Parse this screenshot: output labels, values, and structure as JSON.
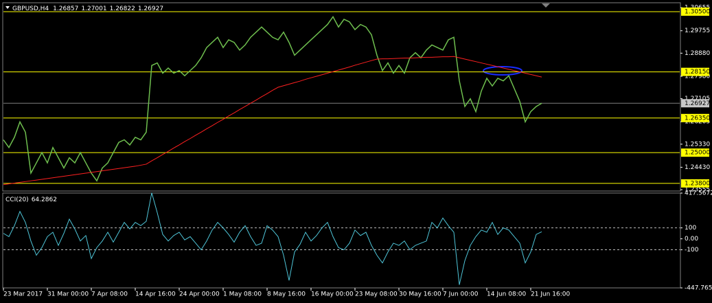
{
  "chart_data": [
    {
      "type": "line",
      "title": "GBPUSD,H4",
      "header_values": [
        1.26857,
        1.27001,
        1.26822,
        1.26927
      ],
      "categories": [
        "23 Mar 2017",
        null,
        null,
        null,
        null,
        null,
        null,
        null,
        "31 Mar 00:00",
        null,
        null,
        null,
        null,
        null,
        null,
        null,
        "7 Apr 08:00",
        null,
        null,
        null,
        null,
        null,
        null,
        null,
        "14 Apr 16:00",
        null,
        null,
        null,
        null,
        null,
        null,
        null,
        "24 Apr 00:00",
        null,
        null,
        null,
        null,
        null,
        null,
        null,
        "1 May 08:00",
        null,
        null,
        null,
        null,
        null,
        null,
        null,
        "8 May 16:00",
        null,
        null,
        null,
        null,
        null,
        null,
        null,
        "16 May 00:00",
        null,
        null,
        null,
        null,
        null,
        null,
        null,
        "23 May 08:00",
        null,
        null,
        null,
        null,
        null,
        null,
        null,
        "30 May 16:00",
        null,
        null,
        null,
        null,
        null,
        null,
        null,
        "7 Jun 00:00",
        null,
        null,
        null,
        null,
        null,
        null,
        null,
        "14 Jun 08:00",
        null,
        null,
        null,
        null,
        null,
        null,
        null,
        "21 Jun 16:00",
        null,
        null
      ],
      "series": [
        {
          "name": "GBPUSD",
          "color": "#6fbf4f",
          "values": [
            1.255,
            1.252,
            1.256,
            1.262,
            1.258,
            1.242,
            1.246,
            1.25,
            1.246,
            1.252,
            1.248,
            1.244,
            1.248,
            1.246,
            1.25,
            1.246,
            1.242,
            1.239,
            1.244,
            1.246,
            1.25,
            1.254,
            1.255,
            1.253,
            1.256,
            1.255,
            1.258,
            1.284,
            1.285,
            1.281,
            1.283,
            1.281,
            1.282,
            1.28,
            1.282,
            1.284,
            1.287,
            1.291,
            1.293,
            1.295,
            1.291,
            1.294,
            1.293,
            1.29,
            1.292,
            1.295,
            1.297,
            1.299,
            1.297,
            1.295,
            1.294,
            1.297,
            1.293,
            1.288,
            1.29,
            1.292,
            1.294,
            1.296,
            1.298,
            1.3,
            1.303,
            1.299,
            1.302,
            1.301,
            1.298,
            1.3,
            1.299,
            1.296,
            1.288,
            1.282,
            1.285,
            1.281,
            1.284,
            1.281,
            1.287,
            1.289,
            1.287,
            1.29,
            1.292,
            1.291,
            1.29,
            1.294,
            1.295,
            1.278,
            1.268,
            1.271,
            1.266,
            1.274,
            1.279,
            1.276,
            1.279,
            1.278,
            1.28,
            1.275,
            1.27,
            1.262,
            1.266,
            1.268,
            1.26927
          ]
        },
        {
          "name": "MA",
          "color": "#ff2020",
          "values": [
            1.2375,
            1.2378,
            1.2381,
            1.2384,
            1.2387,
            1.239,
            1.2393,
            1.2396,
            1.2399,
            1.2402,
            1.2405,
            1.2408,
            1.2411,
            1.2414,
            1.2417,
            1.242,
            1.2423,
            1.2426,
            1.2429,
            1.2432,
            1.2435,
            1.2438,
            1.2441,
            1.2444,
            1.2447,
            1.2451,
            1.2455,
            1.2468,
            1.248,
            1.2493,
            1.2505,
            1.2518,
            1.253,
            1.2543,
            1.2555,
            1.2568,
            1.258,
            1.2593,
            1.2605,
            1.2618,
            1.263,
            1.2643,
            1.2655,
            1.2668,
            1.268,
            1.2693,
            1.2705,
            1.2718,
            1.273,
            1.2743,
            1.2755,
            1.2761,
            1.2767,
            1.2773,
            1.2779,
            1.2786,
            1.2792,
            1.2798,
            1.2804,
            1.281,
            1.2816,
            1.2822,
            1.2828,
            1.2834,
            1.2841,
            1.2847,
            1.2853,
            1.2859,
            1.2865,
            1.2866,
            1.2866,
            1.2867,
            1.2868,
            1.2869,
            1.2869,
            1.287,
            1.2871,
            1.2872,
            1.2872,
            1.2873,
            1.2874,
            1.2874,
            1.2875,
            1.287,
            1.2865,
            1.286,
            1.2855,
            1.285,
            1.2845,
            1.284,
            1.2835,
            1.283,
            1.2825,
            1.282,
            1.2815,
            1.281,
            1.2805,
            1.28,
            1.2795
          ]
        }
      ],
      "ylim": [
        1.2353,
        1.3082
      ],
      "yticks": [
        1.30655,
        1.29755,
        {
          "value": 1.2888,
          "label": "1.28880"
        },
        {
          "value": 1.2798,
          "label": "1.27980"
        },
        1.27105,
        1.26205,
        {
          "value": 1.2533,
          "label": "1.25330"
        },
        {
          "value": 1.2443,
          "label": "1.24430"
        },
        1.23555
      ],
      "levels": [
        {
          "value": 1.305,
          "label": "1.30500"
        },
        {
          "value": 1.2815,
          "label": "1.28150"
        },
        {
          "value": 1.2635,
          "label": "1.26350"
        },
        {
          "value": 1.25,
          "label": "1.25000"
        },
        {
          "value": 1.238,
          "label": "1.23800"
        }
      ],
      "level_color": "#ffff00",
      "price_line": 1.26927
    },
    {
      "type": "line",
      "title": "CCI(20)",
      "header_value": 64.2862,
      "series": [
        {
          "name": "CCI",
          "color": "#4fc6d9",
          "values": [
            50,
            20,
            120,
            250,
            150,
            -20,
            -150,
            -80,
            20,
            60,
            -60,
            50,
            180,
            90,
            -20,
            30,
            -180,
            -80,
            -20,
            60,
            -30,
            60,
            150,
            90,
            150,
            120,
            160,
            420,
            240,
            40,
            -20,
            30,
            60,
            -10,
            20,
            -40,
            -100,
            -20,
            80,
            150,
            100,
            40,
            -30,
            60,
            120,
            20,
            -60,
            -40,
            120,
            80,
            20,
            -150,
            -380,
            -120,
            -50,
            60,
            -20,
            30,
            100,
            150,
            20,
            -80,
            -100,
            -40,
            80,
            30,
            60,
            -60,
            -150,
            -220,
            -120,
            -40,
            -60,
            -20,
            -100,
            -60,
            -40,
            -20,
            150,
            100,
            190,
            120,
            60,
            -420,
            -200,
            -60,
            20,
            80,
            60,
            150,
            40,
            100,
            80,
            20,
            -40,
            -220,
            -120,
            40,
            64.2862
          ]
        }
      ],
      "ylim": [
        -447.7658,
        417.5672
      ],
      "yticks": [
        417.5672,
        100,
        {
          "value": 0,
          "label": "0.00"
        },
        -100,
        -447.7658
      ],
      "levels": [
        100,
        -100
      ]
    }
  ]
}
